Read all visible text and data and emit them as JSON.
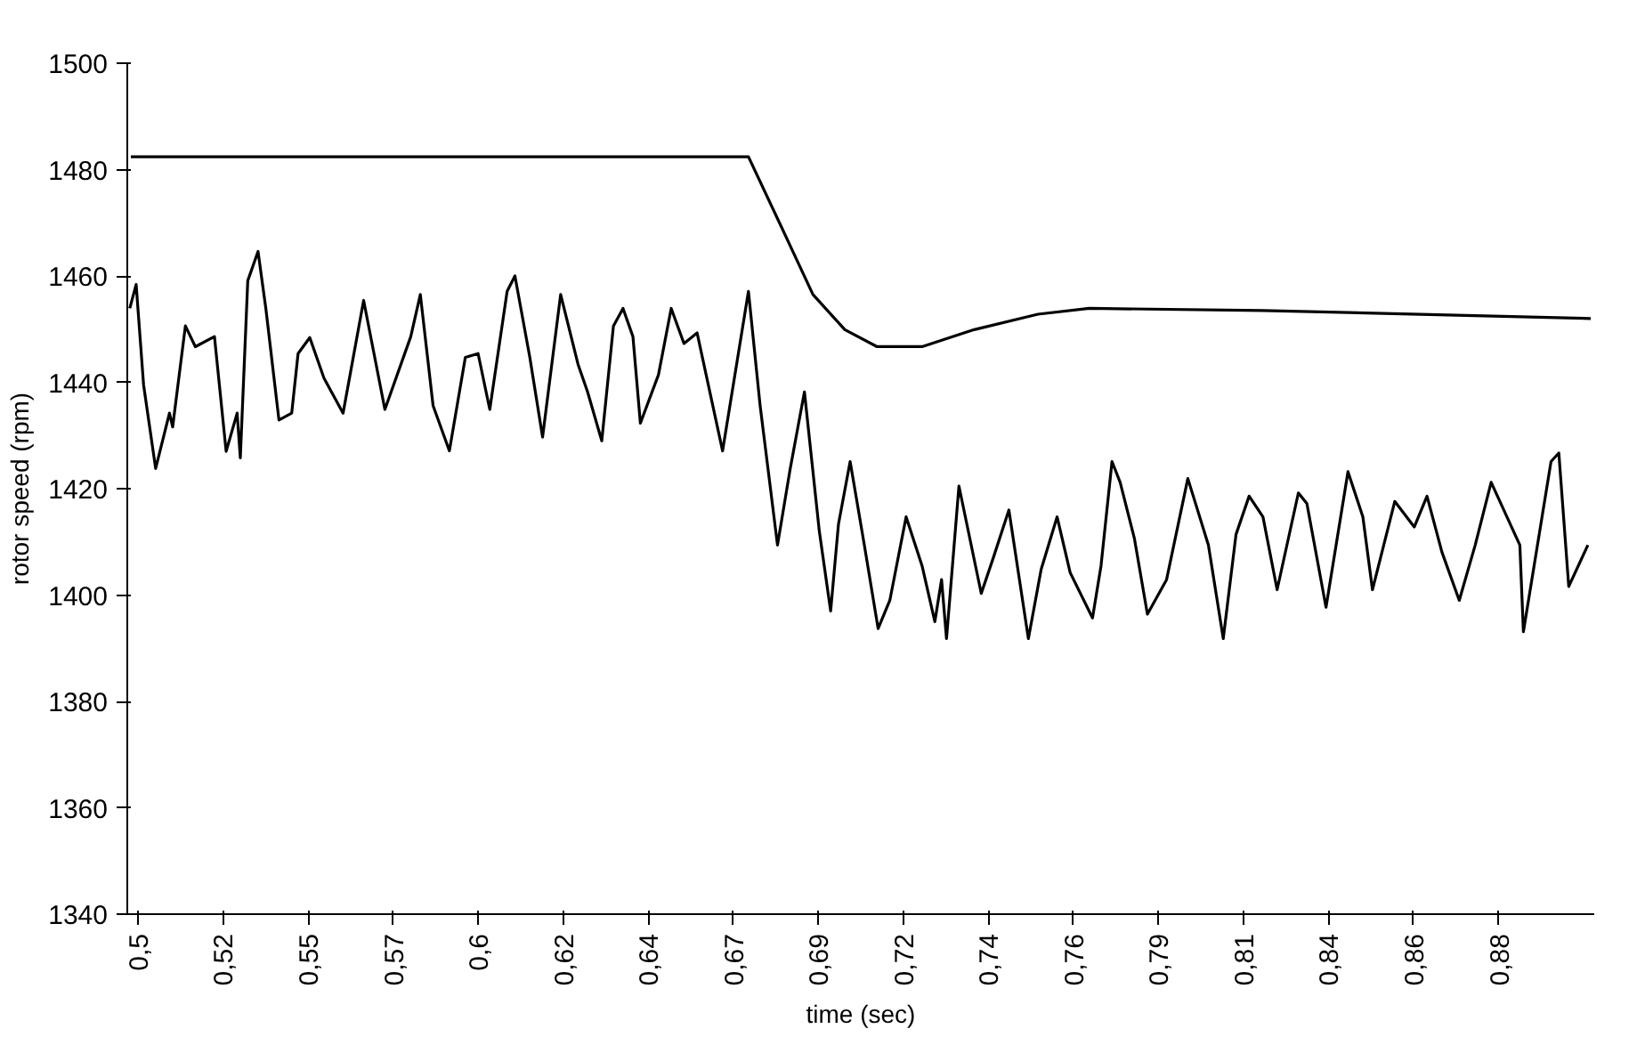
{
  "chart_data": {
    "type": "line",
    "xlabel": "time (sec)",
    "ylabel": "rotor speed (rpm)",
    "xlim": [
      0.497,
      0.911
    ],
    "ylim": [
      1340,
      1500
    ],
    "xticks": [
      {
        "value": 0.5,
        "label": "0,5"
      },
      {
        "value": 0.524,
        "label": "0,52"
      },
      {
        "value": 0.548,
        "label": "0,55"
      },
      {
        "value": 0.572,
        "label": "0,57"
      },
      {
        "value": 0.596,
        "label": "0,6"
      },
      {
        "value": 0.62,
        "label": "0,62"
      },
      {
        "value": 0.644,
        "label": "0,64"
      },
      {
        "value": 0.668,
        "label": "0,67"
      },
      {
        "value": 0.692,
        "label": "0,69"
      },
      {
        "value": 0.716,
        "label": "0,72"
      },
      {
        "value": 0.74,
        "label": "0,74"
      },
      {
        "value": 0.764,
        "label": "0,76"
      },
      {
        "value": 0.788,
        "label": "0,79"
      },
      {
        "value": 0.812,
        "label": "0,81"
      },
      {
        "value": 0.836,
        "label": "0,84"
      },
      {
        "value": 0.86,
        "label": "0,86"
      },
      {
        "value": 0.884,
        "label": "0,88"
      }
    ],
    "yticks": [
      1340,
      1360,
      1380,
      1400,
      1420,
      1440,
      1460,
      1480,
      1500
    ],
    "grid": false,
    "marker": "none",
    "line_style": "solid",
    "series": [
      {
        "color": "#000000",
        "x": [
          0.498,
          0.6723,
          0.6814,
          0.6905,
          0.6995,
          0.7086,
          0.7213,
          0.736,
          0.754,
          0.7685,
          0.8175,
          0.91
        ],
        "values": [
          1482.4,
          1482.4,
          1469.5,
          1456.5,
          1449.9,
          1446.7,
          1446.7,
          1449.9,
          1452.8,
          1453.9,
          1453.5,
          1452
        ]
      },
      {
        "color": "#000000",
        "x": [
          0.4977,
          0.4995,
          0.5016,
          0.505,
          0.5089,
          0.5098,
          0.5134,
          0.5162,
          0.5216,
          0.5249,
          0.528,
          0.5289,
          0.531,
          0.5339,
          0.5361,
          0.5398,
          0.5434,
          0.5452,
          0.5485,
          0.5525,
          0.5579,
          0.5637,
          0.5697,
          0.577,
          0.5797,
          0.5833,
          0.5879,
          0.5924,
          0.596,
          0.5993,
          0.6042,
          0.6064,
          0.6106,
          0.6142,
          0.6193,
          0.6242,
          0.6269,
          0.6309,
          0.6342,
          0.6369,
          0.6397,
          0.6418,
          0.6469,
          0.6505,
          0.6541,
          0.6578,
          0.665,
          0.6723,
          0.6756,
          0.6805,
          0.6841,
          0.6881,
          0.6923,
          0.6955,
          0.6977,
          0.701,
          0.705,
          0.7089,
          0.7122,
          0.7168,
          0.7213,
          0.7249,
          0.7268,
          0.7282,
          0.7317,
          0.738,
          0.7413,
          0.7458,
          0.7513,
          0.7549,
          0.7594,
          0.7631,
          0.7694,
          0.7718,
          0.7749,
          0.7772,
          0.7812,
          0.7849,
          0.7903,
          0.7963,
          0.8021,
          0.8063,
          0.8099,
          0.8136,
          0.8175,
          0.8215,
          0.8275,
          0.8299,
          0.8353,
          0.8415,
          0.8457,
          0.8484,
          0.8547,
          0.8602,
          0.8638,
          0.868,
          0.8729,
          0.8774,
          0.8819,
          0.89,
          0.891,
          0.8988,
          0.901,
          0.9038,
          0.9092
        ],
        "values": [
          1453.9,
          1458.4,
          1439.5,
          1423.8,
          1434.2,
          1431.6,
          1450.6,
          1446.7,
          1448.6,
          1427,
          1434.2,
          1425.8,
          1459.1,
          1464.6,
          1453.9,
          1432.9,
          1434.2,
          1445.4,
          1448.4,
          1440.8,
          1434.2,
          1455.4,
          1434.9,
          1448.6,
          1456.5,
          1435.6,
          1427.1,
          1444.7,
          1445.4,
          1434.9,
          1457.1,
          1460,
          1444.7,
          1429.7,
          1456.5,
          1443.4,
          1438.2,
          1429,
          1450.6,
          1453.9,
          1448.6,
          1432.3,
          1441.4,
          1453.9,
          1447.3,
          1449.3,
          1427.1,
          1457.1,
          1435.6,
          1409.4,
          1423.8,
          1438.2,
          1412,
          1397,
          1413.3,
          1425.1,
          1409.4,
          1393.7,
          1399,
          1414.7,
          1405.5,
          1395,
          1402.9,
          1391.8,
          1420.5,
          1400.3,
          1406.8,
          1416,
          1391.8,
          1404.8,
          1414.7,
          1404.2,
          1395.7,
          1405.5,
          1425.1,
          1421.2,
          1410.7,
          1396.4,
          1402.9,
          1421.9,
          1409.4,
          1391.8,
          1411.4,
          1418.6,
          1414.7,
          1401,
          1419.2,
          1417.2,
          1397.7,
          1423.2,
          1414.7,
          1401,
          1417.6,
          1412.8,
          1418.6,
          1408.1,
          1399,
          1409.4,
          1421.2,
          1409.4,
          1393.1,
          1425.1,
          1426.7,
          1401.6,
          1409.4
        ]
      }
    ]
  }
}
